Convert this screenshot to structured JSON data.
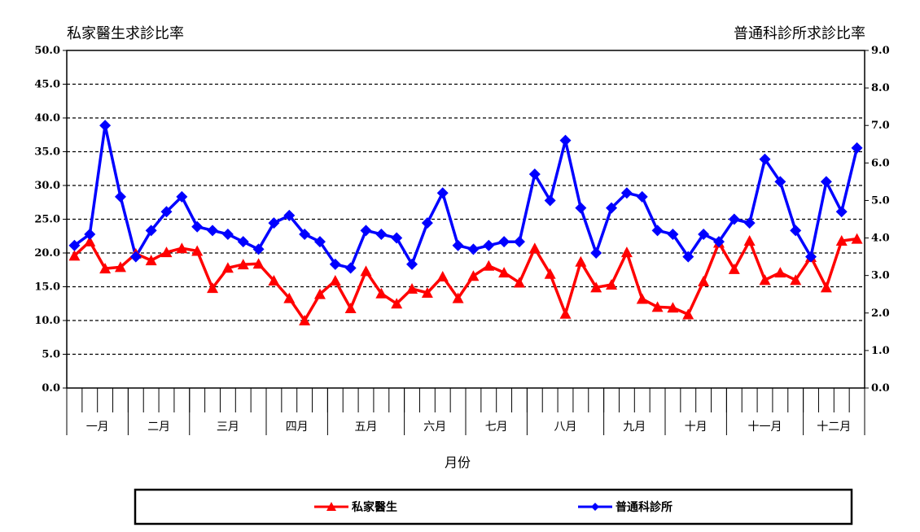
{
  "chart_data": {
    "type": "line",
    "y_left_title": "私家醫生求診比率",
    "y_right_title": "普通科診所求診比率",
    "xlabel": "月份",
    "ylim_left": [
      0,
      50
    ],
    "ylim_right": [
      0,
      9
    ],
    "y_left_ticks": [
      "0.0",
      "5.0",
      "10.0",
      "15.0",
      "20.0",
      "25.0",
      "30.0",
      "35.0",
      "40.0",
      "45.0",
      "50.0"
    ],
    "y_right_ticks": [
      "0.0",
      "1.0",
      "2.0",
      "3.0",
      "4.0",
      "5.0",
      "6.0",
      "7.0",
      "8.0",
      "9.0"
    ],
    "months": [
      {
        "label": "一月",
        "weeks": 4
      },
      {
        "label": "二月",
        "weeks": 4
      },
      {
        "label": "三月",
        "weeks": 5
      },
      {
        "label": "四月",
        "weeks": 4
      },
      {
        "label": "五月",
        "weeks": 5
      },
      {
        "label": "六月",
        "weeks": 4
      },
      {
        "label": "七月",
        "weeks": 4
      },
      {
        "label": "八月",
        "weeks": 5
      },
      {
        "label": "九月",
        "weeks": 4
      },
      {
        "label": "十月",
        "weeks": 4
      },
      {
        "label": "十一月",
        "weeks": 5
      },
      {
        "label": "十二月",
        "weeks": 4
      }
    ],
    "grid": true,
    "legend_position": "bottom",
    "series": [
      {
        "name": "私家醫生",
        "axis": "left",
        "color": "#ff0000",
        "marker": "triangle",
        "values": [
          19.6,
          21.7,
          17.7,
          17.9,
          19.9,
          18.9,
          20.1,
          20.7,
          20.3,
          14.8,
          17.8,
          18.3,
          18.4,
          15.9,
          13.3,
          10.0,
          13.9,
          15.9,
          11.8,
          17.3,
          14.0,
          12.5,
          14.7,
          14.1,
          16.5,
          13.3,
          16.6,
          18.1,
          17.1,
          15.6,
          20.7,
          16.9,
          11.0,
          18.7,
          14.9,
          15.3,
          20.1,
          13.2,
          12.0,
          11.9,
          10.9,
          15.8,
          21.5,
          17.6,
          21.8,
          16.0,
          17.1,
          16.0,
          19.4,
          14.9,
          21.8,
          22.1
        ]
      },
      {
        "name": "普通科診所",
        "axis": "right",
        "color": "#0000ff",
        "marker": "diamond",
        "values": [
          3.8,
          4.1,
          7.0,
          5.1,
          3.5,
          4.2,
          4.7,
          5.1,
          4.3,
          4.2,
          4.1,
          3.9,
          3.7,
          4.4,
          4.6,
          4.1,
          3.9,
          3.3,
          3.2,
          4.2,
          4.1,
          4.0,
          3.3,
          4.4,
          5.2,
          3.8,
          3.7,
          3.8,
          3.9,
          3.9,
          5.7,
          5.0,
          6.6,
          4.8,
          3.6,
          4.8,
          5.2,
          5.1,
          4.2,
          4.1,
          3.5,
          4.1,
          3.9,
          4.5,
          4.4,
          6.1,
          5.5,
          4.2,
          3.5,
          5.5,
          4.7,
          6.4
        ]
      }
    ]
  }
}
